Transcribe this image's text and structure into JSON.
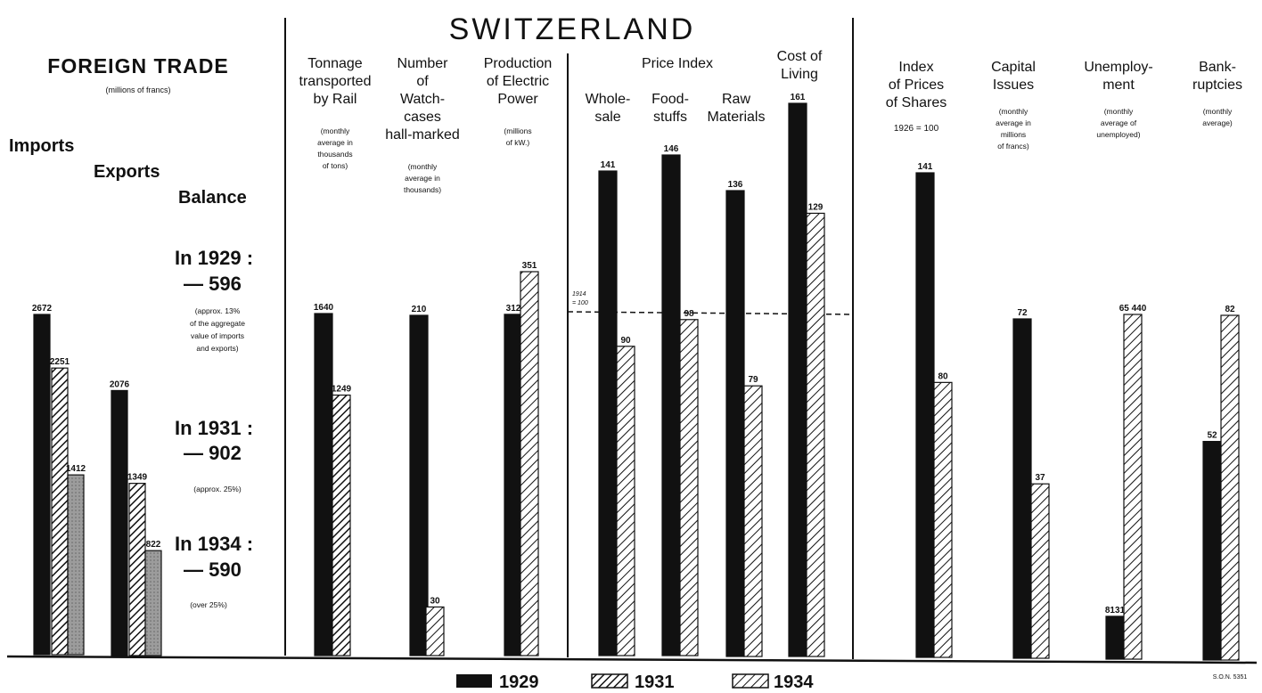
{
  "title": "SWITZERLAND",
  "reference_code": "S.O.N. 5351",
  "legend": [
    {
      "label": "1929",
      "pattern": "solid"
    },
    {
      "label": "1931",
      "pattern": "hatch"
    },
    {
      "label": "1934",
      "pattern": "hatch-light"
    }
  ],
  "foreign_trade": {
    "heading": "FOREIGN TRADE",
    "unit": "(millions of francs)",
    "label_imports": "Imports",
    "label_exports": "Exports",
    "label_balance": "Balance",
    "balances": [
      {
        "year_label": "In 1929 :",
        "value": "— 596",
        "note_lines": [
          "(approx. 13%",
          "of the aggregate",
          "value of imports",
          "and exports)"
        ]
      },
      {
        "year_label": "In 1931 :",
        "value": "— 902",
        "note_lines": [
          "(approx. 25%)"
        ]
      },
      {
        "year_label": "In 1934 :",
        "value": "— 590",
        "note_lines": [
          "(over 25%)"
        ]
      }
    ]
  },
  "sections": {
    "rail": {
      "title_lines": [
        "Tonnage",
        "transported",
        "by Rail"
      ],
      "note_lines": [
        "(monthly",
        "average in",
        "thousands",
        "of tons)"
      ]
    },
    "watch": {
      "title_lines": [
        "Number",
        "of",
        "Watch-",
        "cases",
        "hall-marked"
      ],
      "note_lines": [
        "(monthly",
        "average in",
        "thousands)"
      ]
    },
    "power": {
      "title_lines": [
        "Production",
        "of Electric",
        "Power"
      ],
      "note_lines": [
        "(millions",
        "of kW.)"
      ]
    },
    "price_index": {
      "title": "Price Index",
      "sub_wholesale": [
        "Whole-",
        "sale"
      ],
      "sub_food": [
        "Food-",
        "stuffs"
      ],
      "sub_raw": [
        "Raw",
        "Materials"
      ],
      "baseline_label": [
        "1914",
        "= 100"
      ]
    },
    "cost_living": {
      "title_lines": [
        "Cost of",
        "Living"
      ]
    },
    "shares": {
      "title_lines": [
        "Index",
        "of Prices",
        "of Shares"
      ],
      "note_lines": [
        "1926 = 100"
      ]
    },
    "capital": {
      "title_lines": [
        "Capital",
        "Issues"
      ],
      "note_lines": [
        "(monthly",
        "average in",
        "millions",
        "of francs)"
      ]
    },
    "unemployment": {
      "title_lines": [
        "Unemploy-",
        "ment"
      ],
      "note_lines": [
        "(monthly",
        "average of",
        "unemployed)"
      ]
    },
    "bankruptcies": {
      "title_lines": [
        "Bank-",
        "ruptcies"
      ],
      "note_lines": [
        "(monthly",
        "average)"
      ]
    }
  },
  "chart_data": [
    {
      "type": "bar",
      "name": "Imports",
      "years": [
        "1929",
        "1931",
        "1934"
      ],
      "values": [
        2672,
        2251,
        1412
      ]
    },
    {
      "type": "bar",
      "name": "Exports",
      "years": [
        "1929",
        "1931",
        "1934"
      ],
      "values": [
        2076,
        1349,
        822
      ]
    },
    {
      "type": "bar",
      "name": "Tonnage transported by Rail",
      "years": [
        "1929",
        "1931"
      ],
      "values": [
        1640,
        1249
      ]
    },
    {
      "type": "bar",
      "name": "Number of Watch-cases hall-marked",
      "years": [
        "1929",
        "1934"
      ],
      "values": [
        210,
        30
      ]
    },
    {
      "type": "bar",
      "name": "Production of Electric Power",
      "years": [
        "1929",
        "1934"
      ],
      "values": [
        312,
        351
      ]
    },
    {
      "type": "bar",
      "name": "Price Index Whole-sale",
      "years": [
        "1929",
        "1934"
      ],
      "values": [
        141,
        90
      ]
    },
    {
      "type": "bar",
      "name": "Price Index Food-stuffs",
      "years": [
        "1929",
        "1934"
      ],
      "values": [
        146,
        98
      ]
    },
    {
      "type": "bar",
      "name": "Price Index Raw Materials",
      "years": [
        "1929",
        "1934"
      ],
      "values": [
        136,
        79
      ]
    },
    {
      "type": "bar",
      "name": "Cost of Living",
      "years": [
        "1929",
        "1934"
      ],
      "values": [
        161,
        129
      ]
    },
    {
      "type": "bar",
      "name": "Index of Prices of Shares",
      "years": [
        "1929",
        "1934"
      ],
      "values": [
        141,
        80
      ]
    },
    {
      "type": "bar",
      "name": "Capital Issues",
      "years": [
        "1929",
        "1934"
      ],
      "values": [
        72,
        37
      ]
    },
    {
      "type": "bar",
      "name": "Unemployment",
      "years": [
        "1929",
        "1934"
      ],
      "values": [
        8131,
        65440
      ],
      "value_labels": [
        "8131",
        "65 440"
      ]
    },
    {
      "type": "bar",
      "name": "Bankruptcies",
      "years": [
        "1929",
        "1934"
      ],
      "values": [
        52,
        82
      ]
    }
  ]
}
